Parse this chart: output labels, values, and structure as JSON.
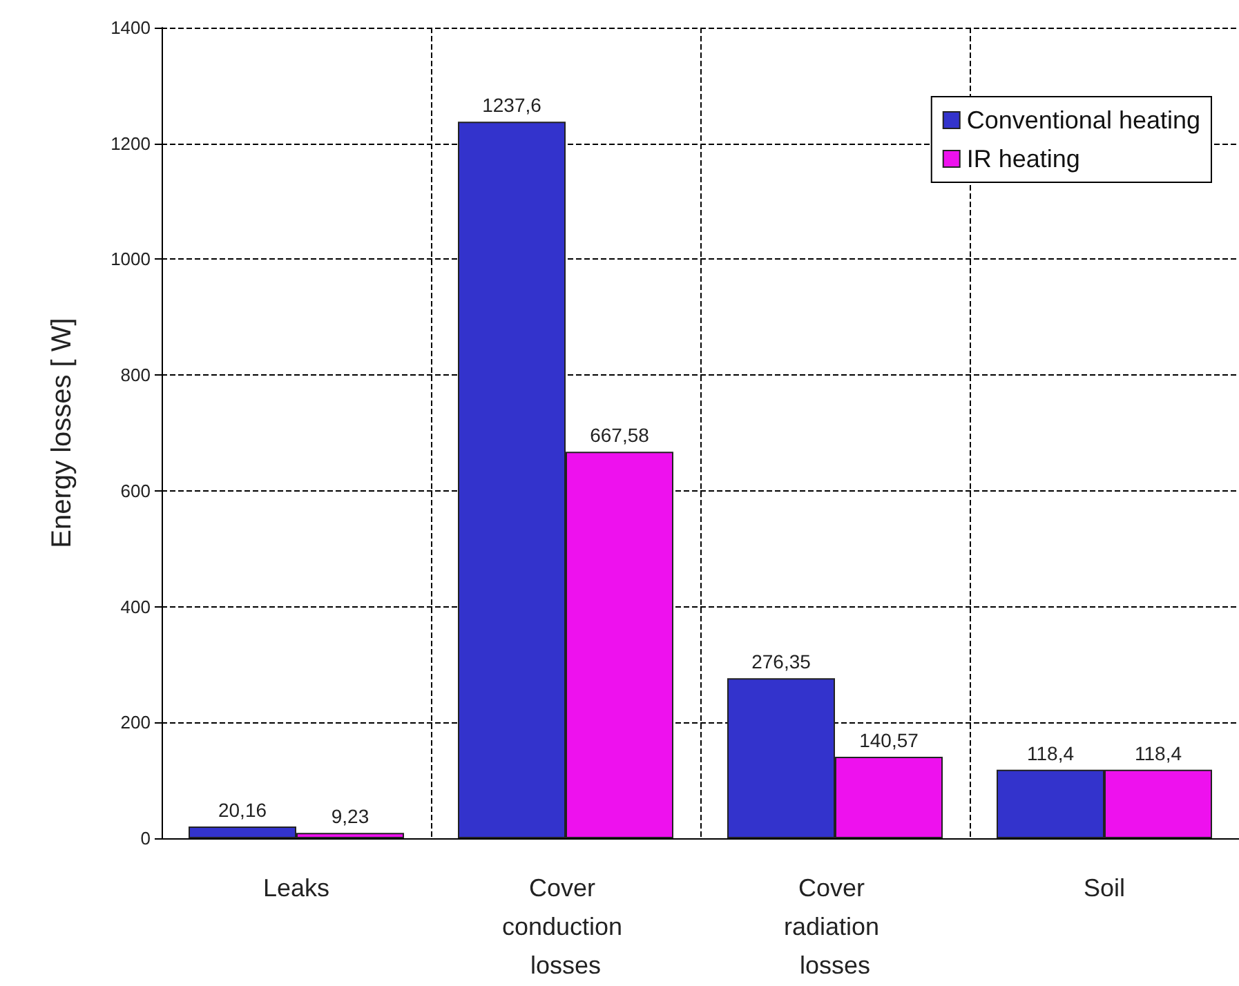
{
  "chart_data": {
    "type": "bar",
    "ylabel": "Energy losses [ W]",
    "categories": [
      "Leaks",
      "Cover conduction losses",
      "Cover radiation losses",
      "Soil"
    ],
    "series": [
      {
        "name": "Conventional heating",
        "color": "#3333cc",
        "values": [
          20.16,
          1237.6,
          276.35,
          118.4
        ],
        "value_labels": [
          "20,16",
          "1237,6",
          "276,35",
          "118,4"
        ]
      },
      {
        "name": "IR heating",
        "color": "#ee11ee",
        "values": [
          9.23,
          667.58,
          140.57,
          118.4
        ],
        "value_labels": [
          "9,23",
          "667,58",
          "140,57",
          "118,4"
        ]
      }
    ],
    "ylim": [
      0,
      1400
    ],
    "yticks": [
      0,
      200,
      400,
      600,
      800,
      1000,
      1200,
      1400
    ],
    "grid": true,
    "legend": "top right"
  }
}
